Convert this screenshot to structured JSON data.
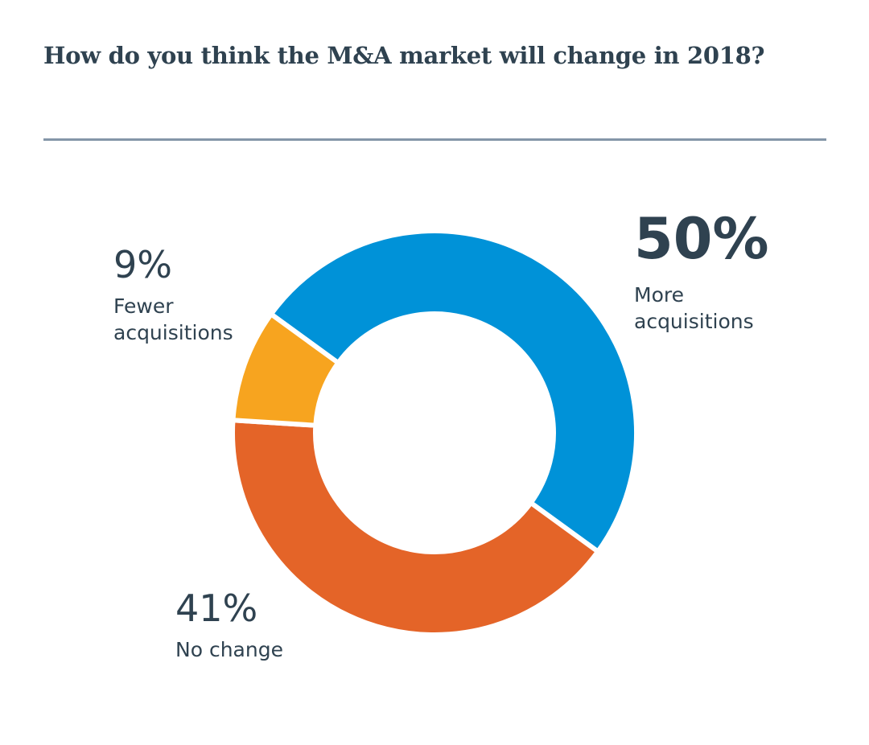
{
  "title": "How do you think the M&A market will change in 2018?",
  "chart_data": {
    "type": "pie",
    "variant": "donut",
    "title": "How do you think the M&A market will change in 2018?",
    "unit": "%",
    "slices": [
      {
        "key": "more",
        "label": "More acquisitions",
        "value": 50,
        "display": "50%",
        "color": "#0092d8"
      },
      {
        "key": "nochange",
        "label": "No change",
        "value": 41,
        "display": "41%",
        "color": "#e46428"
      },
      {
        "key": "fewer",
        "label": "Fewer acquisitions",
        "value": 9,
        "display": "9%",
        "color": "#f7a41f"
      }
    ]
  }
}
